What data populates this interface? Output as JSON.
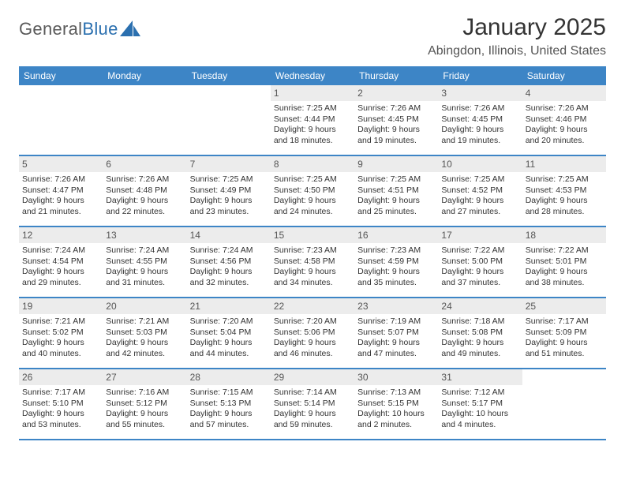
{
  "logo": {
    "part1": "General",
    "part2": "Blue"
  },
  "title": "January 2025",
  "location": "Abingdon, Illinois, United States",
  "colors": {
    "header_bg": "#3d85c6",
    "daynum_bg": "#ececec",
    "text": "#333333",
    "logo_gray": "#5a5a5a",
    "logo_blue": "#2a6faf"
  },
  "weekdays": [
    "Sunday",
    "Monday",
    "Tuesday",
    "Wednesday",
    "Thursday",
    "Friday",
    "Saturday"
  ],
  "weeks": [
    [
      null,
      null,
      null,
      {
        "n": "1",
        "sunrise": "7:25 AM",
        "sunset": "4:44 PM",
        "daylight": "9 hours and 18 minutes."
      },
      {
        "n": "2",
        "sunrise": "7:26 AM",
        "sunset": "4:45 PM",
        "daylight": "9 hours and 19 minutes."
      },
      {
        "n": "3",
        "sunrise": "7:26 AM",
        "sunset": "4:45 PM",
        "daylight": "9 hours and 19 minutes."
      },
      {
        "n": "4",
        "sunrise": "7:26 AM",
        "sunset": "4:46 PM",
        "daylight": "9 hours and 20 minutes."
      }
    ],
    [
      {
        "n": "5",
        "sunrise": "7:26 AM",
        "sunset": "4:47 PM",
        "daylight": "9 hours and 21 minutes."
      },
      {
        "n": "6",
        "sunrise": "7:26 AM",
        "sunset": "4:48 PM",
        "daylight": "9 hours and 22 minutes."
      },
      {
        "n": "7",
        "sunrise": "7:25 AM",
        "sunset": "4:49 PM",
        "daylight": "9 hours and 23 minutes."
      },
      {
        "n": "8",
        "sunrise": "7:25 AM",
        "sunset": "4:50 PM",
        "daylight": "9 hours and 24 minutes."
      },
      {
        "n": "9",
        "sunrise": "7:25 AM",
        "sunset": "4:51 PM",
        "daylight": "9 hours and 25 minutes."
      },
      {
        "n": "10",
        "sunrise": "7:25 AM",
        "sunset": "4:52 PM",
        "daylight": "9 hours and 27 minutes."
      },
      {
        "n": "11",
        "sunrise": "7:25 AM",
        "sunset": "4:53 PM",
        "daylight": "9 hours and 28 minutes."
      }
    ],
    [
      {
        "n": "12",
        "sunrise": "7:24 AM",
        "sunset": "4:54 PM",
        "daylight": "9 hours and 29 minutes."
      },
      {
        "n": "13",
        "sunrise": "7:24 AM",
        "sunset": "4:55 PM",
        "daylight": "9 hours and 31 minutes."
      },
      {
        "n": "14",
        "sunrise": "7:24 AM",
        "sunset": "4:56 PM",
        "daylight": "9 hours and 32 minutes."
      },
      {
        "n": "15",
        "sunrise": "7:23 AM",
        "sunset": "4:58 PM",
        "daylight": "9 hours and 34 minutes."
      },
      {
        "n": "16",
        "sunrise": "7:23 AM",
        "sunset": "4:59 PM",
        "daylight": "9 hours and 35 minutes."
      },
      {
        "n": "17",
        "sunrise": "7:22 AM",
        "sunset": "5:00 PM",
        "daylight": "9 hours and 37 minutes."
      },
      {
        "n": "18",
        "sunrise": "7:22 AM",
        "sunset": "5:01 PM",
        "daylight": "9 hours and 38 minutes."
      }
    ],
    [
      {
        "n": "19",
        "sunrise": "7:21 AM",
        "sunset": "5:02 PM",
        "daylight": "9 hours and 40 minutes."
      },
      {
        "n": "20",
        "sunrise": "7:21 AM",
        "sunset": "5:03 PM",
        "daylight": "9 hours and 42 minutes."
      },
      {
        "n": "21",
        "sunrise": "7:20 AM",
        "sunset": "5:04 PM",
        "daylight": "9 hours and 44 minutes."
      },
      {
        "n": "22",
        "sunrise": "7:20 AM",
        "sunset": "5:06 PM",
        "daylight": "9 hours and 46 minutes."
      },
      {
        "n": "23",
        "sunrise": "7:19 AM",
        "sunset": "5:07 PM",
        "daylight": "9 hours and 47 minutes."
      },
      {
        "n": "24",
        "sunrise": "7:18 AM",
        "sunset": "5:08 PM",
        "daylight": "9 hours and 49 minutes."
      },
      {
        "n": "25",
        "sunrise": "7:17 AM",
        "sunset": "5:09 PM",
        "daylight": "9 hours and 51 minutes."
      }
    ],
    [
      {
        "n": "26",
        "sunrise": "7:17 AM",
        "sunset": "5:10 PM",
        "daylight": "9 hours and 53 minutes."
      },
      {
        "n": "27",
        "sunrise": "7:16 AM",
        "sunset": "5:12 PM",
        "daylight": "9 hours and 55 minutes."
      },
      {
        "n": "28",
        "sunrise": "7:15 AM",
        "sunset": "5:13 PM",
        "daylight": "9 hours and 57 minutes."
      },
      {
        "n": "29",
        "sunrise": "7:14 AM",
        "sunset": "5:14 PM",
        "daylight": "9 hours and 59 minutes."
      },
      {
        "n": "30",
        "sunrise": "7:13 AM",
        "sunset": "5:15 PM",
        "daylight": "10 hours and 2 minutes."
      },
      {
        "n": "31",
        "sunrise": "7:12 AM",
        "sunset": "5:17 PM",
        "daylight": "10 hours and 4 minutes."
      },
      null
    ]
  ],
  "labels": {
    "sunrise": "Sunrise:",
    "sunset": "Sunset:",
    "daylight": "Daylight:"
  }
}
